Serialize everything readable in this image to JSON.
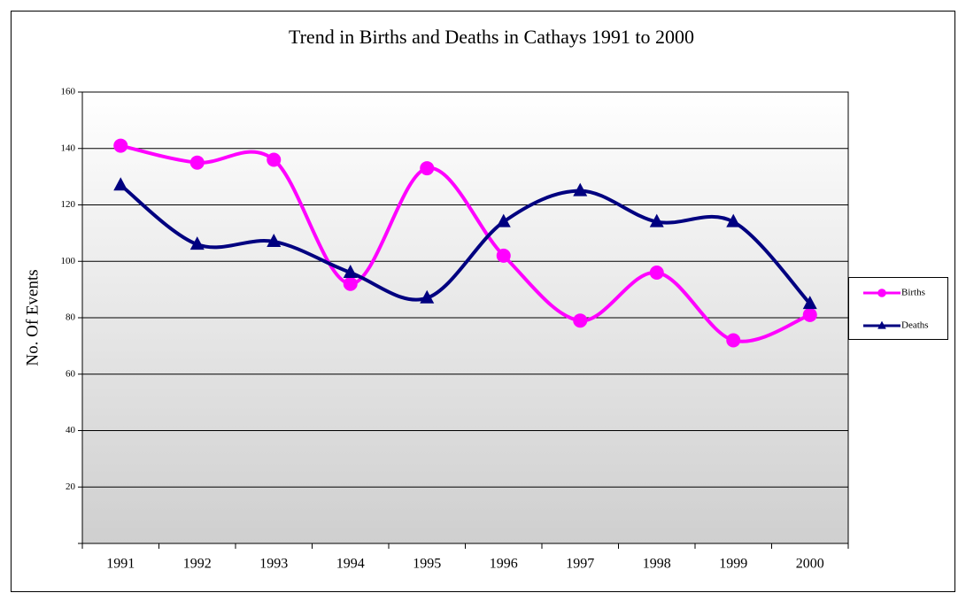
{
  "chart_data": {
    "type": "line",
    "title": "Trend in Births and Deaths in Cathays 1991 to 2000",
    "ylabel": "No. Of Events",
    "categories": [
      "1991",
      "1992",
      "1993",
      "1994",
      "1995",
      "1996",
      "1997",
      "1998",
      "1999",
      "2000"
    ],
    "series": [
      {
        "name": "Births",
        "color": "#ff00ff",
        "values": [
          141,
          135,
          136,
          92,
          133,
          102,
          79,
          96,
          72,
          81
        ]
      },
      {
        "name": "Deaths",
        "color": "#000080",
        "values": [
          127,
          106,
          107,
          96,
          87,
          114,
          125,
          114,
          114,
          85
        ]
      }
    ],
    "ylim": [
      0,
      160
    ],
    "yticks": [
      20,
      40,
      60,
      80,
      100,
      120,
      140,
      160
    ],
    "grid": true,
    "legend": "right"
  }
}
